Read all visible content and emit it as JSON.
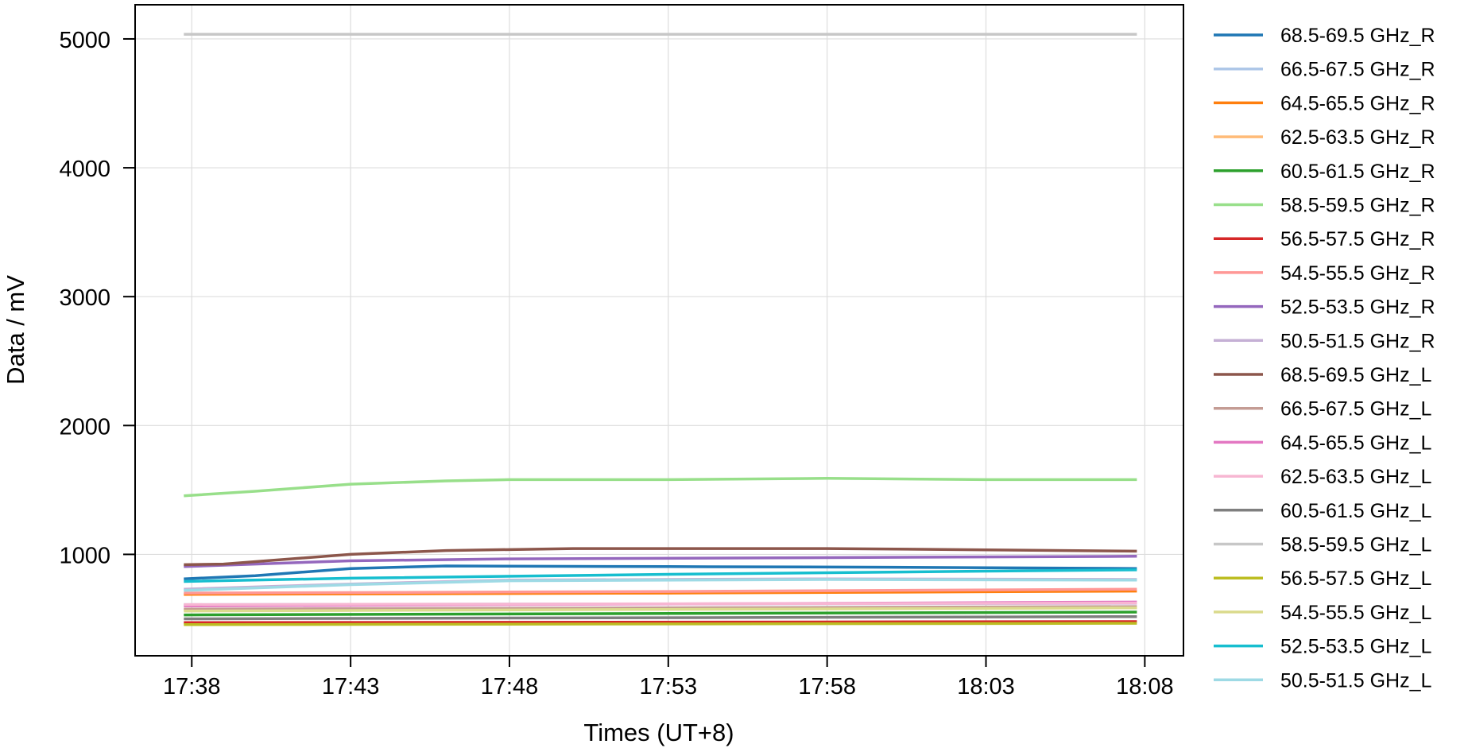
{
  "chart_data": {
    "type": "line",
    "title": "",
    "xlabel": "Times (UT+8)",
    "ylabel": "Data / mV",
    "xlim": [
      "17:36:13",
      "18:09:13"
    ],
    "ylim": [
      213,
      5265
    ],
    "xticks": [
      "17:38",
      "17:43",
      "17:48",
      "17:53",
      "17:58",
      "18:03",
      "18:08"
    ],
    "yticks": [
      1000,
      2000,
      3000,
      4000,
      5000
    ],
    "grid": true,
    "legend_placement": "outside-right",
    "series": [
      {
        "name": "68.5-69.5 GHz_R",
        "color": "#1f77b4",
        "x": [
          "17:37:45",
          "17:40:00",
          "17:43:00",
          "17:46:00",
          "17:53:00",
          "18:00:00",
          "18:07:45"
        ],
        "y": [
          810,
          835,
          890,
          910,
          905,
          900,
          890
        ]
      },
      {
        "name": "66.5-67.5 GHz_R",
        "color": "#aec7e8",
        "x": [
          "17:37:45",
          "18:07:45"
        ],
        "y": [
          610,
          620
        ]
      },
      {
        "name": "64.5-65.5 GHz_R",
        "color": "#ff7f0e",
        "x": [
          "17:37:45",
          "17:53:00",
          "18:07:45"
        ],
        "y": [
          690,
          700,
          715
        ]
      },
      {
        "name": "62.5-63.5 GHz_R",
        "color": "#ffbb78",
        "x": [
          "17:37:45",
          "18:07:45"
        ],
        "y": [
          570,
          585
        ]
      },
      {
        "name": "60.5-61.5 GHz_R",
        "color": "#2ca02c",
        "x": [
          "17:37:45",
          "18:07:45"
        ],
        "y": [
          530,
          552
        ]
      },
      {
        "name": "58.5-59.5 GHz_R",
        "color": "#98df8a",
        "x": [
          "17:37:45",
          "17:40:00",
          "17:43:00",
          "17:46:00",
          "17:48:00",
          "17:53:00",
          "17:58:00",
          "18:03:00",
          "18:07:45"
        ],
        "y": [
          1455,
          1490,
          1545,
          1570,
          1580,
          1580,
          1590,
          1580,
          1580
        ]
      },
      {
        "name": "56.5-57.5 GHz_R",
        "color": "#d62728",
        "x": [
          "17:37:45",
          "18:07:45"
        ],
        "y": [
          470,
          478
        ]
      },
      {
        "name": "54.5-55.5 GHz_R",
        "color": "#ff9896",
        "x": [
          "17:37:45",
          "17:53:00",
          "18:07:45"
        ],
        "y": [
          700,
          712,
          730
        ]
      },
      {
        "name": "52.5-53.5 GHz_R",
        "color": "#9467bd",
        "x": [
          "17:37:45",
          "17:40:00",
          "17:43:00",
          "17:48:00",
          "17:58:00",
          "18:07:45"
        ],
        "y": [
          905,
          925,
          950,
          965,
          975,
          985
        ]
      },
      {
        "name": "50.5-51.5 GHz_R",
        "color": "#c5b0d5",
        "x": [
          "17:37:45",
          "17:43:00",
          "17:48:00",
          "17:58:00",
          "18:07:45"
        ],
        "y": [
          730,
          770,
          800,
          810,
          805
        ]
      },
      {
        "name": "68.5-69.5 GHz_L",
        "color": "#8c564b",
        "x": [
          "17:37:45",
          "17:39:00",
          "17:43:00",
          "17:46:00",
          "17:50:00",
          "17:58:00",
          "18:03:00",
          "18:07:45"
        ],
        "y": [
          920,
          925,
          1000,
          1030,
          1045,
          1045,
          1035,
          1025
        ]
      },
      {
        "name": "66.5-67.5 GHz_L",
        "color": "#c49c94",
        "x": [
          "17:37:45",
          "18:07:45"
        ],
        "y": [
          575,
          595
        ]
      },
      {
        "name": "64.5-65.5 GHz_L",
        "color": "#e377c2",
        "x": [
          "17:37:45",
          "18:07:45"
        ],
        "y": [
          600,
          630
        ]
      },
      {
        "name": "62.5-63.5 GHz_L",
        "color": "#f7b6d2",
        "x": [
          "17:37:45",
          "18:07:45"
        ],
        "y": [
          610,
          622
        ]
      },
      {
        "name": "60.5-61.5 GHz_L",
        "color": "#7f7f7f",
        "x": [
          "17:37:45",
          "18:07:45"
        ],
        "y": [
          500,
          517
        ]
      },
      {
        "name": "58.5-59.5 GHz_L",
        "color": "#c7c7c7",
        "x": [
          "17:37:45",
          "18:07:45"
        ],
        "y": [
          5036,
          5036
        ]
      },
      {
        "name": "56.5-57.5 GHz_L",
        "color": "#bcbd22",
        "x": [
          "17:37:45",
          "18:07:45"
        ],
        "y": [
          455,
          465
        ]
      },
      {
        "name": "54.5-55.5 GHz_L",
        "color": "#dbdb8d",
        "x": [
          "17:37:45",
          "18:07:45"
        ],
        "y": [
          560,
          585
        ]
      },
      {
        "name": "52.5-53.5 GHz_L",
        "color": "#17becf",
        "x": [
          "17:37:45",
          "17:43:00",
          "17:53:00",
          "18:03:00",
          "18:07:45"
        ],
        "y": [
          790,
          815,
          845,
          870,
          880
        ]
      },
      {
        "name": "50.5-51.5 GHz_L",
        "color": "#9edae5",
        "x": [
          "17:37:45",
          "17:43:00",
          "17:48:00",
          "17:58:00",
          "18:07:45"
        ],
        "y": [
          720,
          765,
          795,
          805,
          800
        ]
      }
    ]
  }
}
